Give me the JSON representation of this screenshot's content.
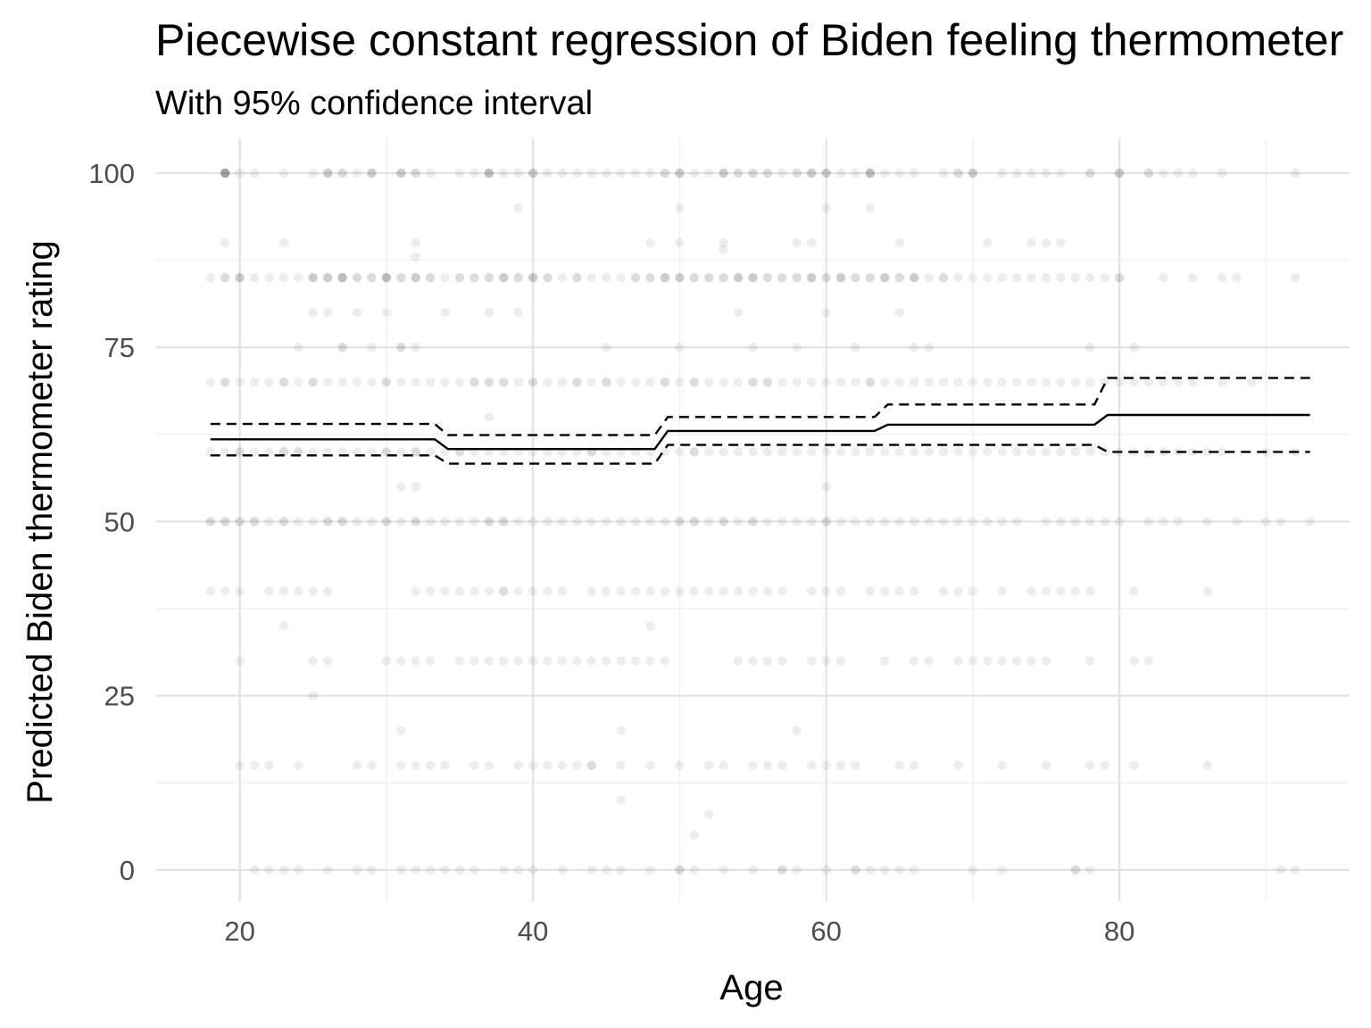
{
  "chart_data": {
    "type": "scatter",
    "title": "Piecewise constant regression of Biden feeling thermometer",
    "subtitle": "With 95% confidence interval",
    "xlabel": "Age",
    "ylabel": "Predicted Biden thermometer rating",
    "xlim": [
      14.3,
      95.7
    ],
    "ylim": [
      -4.5,
      105
    ],
    "x_ticks": [
      20,
      40,
      60,
      80
    ],
    "y_ticks": [
      0,
      25,
      50,
      75,
      100
    ],
    "x_tick_labels": [
      "20",
      "40",
      "60",
      "80"
    ],
    "y_tick_labels": [
      "0",
      "25",
      "50",
      "75",
      "100"
    ],
    "grid": true,
    "legend": "none",
    "colors": {
      "points": "#000000",
      "lines": "#000000",
      "grid_major": "#e3e3e3",
      "grid_minor": "#f0f0f0"
    },
    "point_alpha": 0.07,
    "scatter_points": [
      {
        "y": 100,
        "x": [
          19,
          19,
          19,
          19,
          19,
          19,
          20,
          21,
          23,
          25,
          26,
          26,
          26,
          27,
          27,
          28,
          29,
          29,
          29,
          31,
          31,
          31,
          32,
          32,
          33,
          35,
          36,
          37,
          37,
          37,
          37,
          38,
          39,
          40,
          40,
          40,
          41,
          42,
          43,
          44,
          45,
          46,
          47,
          48,
          49,
          49,
          50,
          50,
          50,
          51,
          52,
          53,
          53,
          53,
          54,
          54,
          55,
          55,
          56,
          56,
          57,
          58,
          58,
          59,
          59,
          59,
          60,
          60,
          60,
          61,
          62,
          63,
          63,
          63,
          63,
          64,
          65,
          66,
          68,
          69,
          69,
          70,
          70,
          70,
          72,
          73,
          74,
          75,
          76,
          78,
          78,
          80,
          80,
          80,
          82,
          82,
          83,
          84,
          85,
          87,
          92
        ]
      },
      {
        "y": 95,
        "x": [
          39,
          50,
          60,
          63
        ]
      },
      {
        "y": 90,
        "x": [
          19,
          23,
          32,
          48,
          50,
          53,
          58,
          59,
          65,
          71,
          74,
          75,
          76
        ]
      },
      {
        "y": 89,
        "x": [
          53
        ]
      },
      {
        "y": 88,
        "x": [
          32
        ]
      },
      {
        "y": 85,
        "x": [
          18,
          19,
          19,
          20,
          20,
          20,
          21,
          22,
          23,
          24,
          25,
          25,
          25,
          26,
          26,
          26,
          27,
          27,
          27,
          27,
          28,
          28,
          29,
          29,
          30,
          30,
          30,
          30,
          31,
          31,
          32,
          32,
          32,
          33,
          33,
          34,
          35,
          35,
          36,
          36,
          37,
          37,
          38,
          38,
          38,
          39,
          39,
          40,
          40,
          40,
          41,
          41,
          42,
          43,
          43,
          44,
          45,
          46,
          47,
          47,
          48,
          48,
          49,
          49,
          49,
          50,
          50,
          50,
          51,
          51,
          52,
          52,
          53,
          53,
          54,
          54,
          54,
          55,
          55,
          55,
          56,
          56,
          57,
          57,
          58,
          58,
          59,
          59,
          59,
          60,
          60,
          61,
          61,
          61,
          62,
          62,
          63,
          63,
          64,
          64,
          64,
          65,
          65,
          66,
          66,
          66,
          67,
          68,
          68,
          69,
          70,
          71,
          72,
          73,
          74,
          75,
          76,
          77,
          78,
          79,
          80,
          80,
          83,
          85,
          87,
          88,
          92
        ]
      },
      {
        "y": 80,
        "x": [
          25,
          26,
          28,
          30,
          34,
          37,
          39,
          54,
          60,
          65
        ]
      },
      {
        "y": 75,
        "x": [
          24,
          27,
          27,
          29,
          31,
          31,
          32,
          45,
          50,
          55,
          58,
          62,
          66,
          67,
          78,
          81
        ]
      },
      {
        "y": 70,
        "x": [
          18,
          19,
          19,
          20,
          21,
          22,
          23,
          23,
          24,
          25,
          25,
          26,
          27,
          28,
          29,
          30,
          30,
          31,
          32,
          33,
          34,
          35,
          36,
          36,
          37,
          37,
          38,
          38,
          39,
          40,
          40,
          41,
          42,
          43,
          43,
          44,
          45,
          45,
          46,
          47,
          48,
          49,
          49,
          50,
          51,
          51,
          52,
          53,
          54,
          55,
          55,
          56,
          56,
          57,
          58,
          59,
          60,
          61,
          62,
          63,
          63,
          64,
          65,
          66,
          67,
          68,
          69,
          70,
          71,
          72,
          73,
          74,
          75,
          76,
          77,
          78,
          79,
          80,
          81,
          82,
          83,
          84,
          85,
          87,
          89
        ]
      },
      {
        "y": 65,
        "x": [
          37
        ]
      },
      {
        "y": 60,
        "x": [
          18,
          19,
          20,
          20,
          21,
          22,
          23,
          23,
          24,
          24,
          25,
          26,
          27,
          28,
          29,
          30,
          30,
          31,
          32,
          32,
          33,
          34,
          35,
          35,
          36,
          37,
          38,
          39,
          40,
          41,
          42,
          43,
          44,
          44,
          45,
          46,
          47,
          48,
          49,
          50,
          51,
          51,
          52,
          53,
          54,
          55,
          56,
          57,
          58,
          59,
          60,
          61,
          62,
          63,
          64,
          65,
          66,
          67,
          68,
          69,
          70,
          71,
          72,
          73,
          74,
          75,
          76,
          77,
          78,
          79,
          80,
          81,
          82,
          83,
          84,
          85,
          86,
          87,
          90,
          92
        ]
      },
      {
        "y": 55,
        "x": [
          31,
          32,
          60
        ]
      },
      {
        "y": 50,
        "x": [
          18,
          18,
          19,
          19,
          20,
          20,
          21,
          21,
          22,
          23,
          23,
          24,
          25,
          26,
          26,
          27,
          27,
          28,
          29,
          30,
          30,
          31,
          32,
          32,
          33,
          34,
          35,
          36,
          37,
          37,
          38,
          38,
          39,
          40,
          41,
          42,
          43,
          44,
          45,
          46,
          47,
          48,
          49,
          50,
          50,
          51,
          51,
          52,
          53,
          53,
          54,
          55,
          55,
          56,
          57,
          58,
          59,
          60,
          60,
          61,
          62,
          63,
          64,
          65,
          66,
          67,
          68,
          69,
          70,
          71,
          72,
          73,
          75,
          76,
          77,
          78,
          79,
          80,
          82,
          83,
          84,
          86,
          88,
          90,
          91,
          93
        ]
      },
      {
        "y": 40,
        "x": [
          18,
          19,
          20,
          22,
          23,
          24,
          25,
          26,
          32,
          33,
          34,
          35,
          36,
          37,
          38,
          38,
          39,
          40,
          41,
          42,
          44,
          45,
          46,
          47,
          48,
          49,
          50,
          51,
          52,
          53,
          54,
          55,
          56,
          57,
          59,
          60,
          61,
          63,
          64,
          65,
          66,
          68,
          69,
          70,
          72,
          74,
          75,
          76,
          77,
          78,
          81,
          86
        ]
      },
      {
        "y": 35,
        "x": [
          23,
          48
        ]
      },
      {
        "y": 30,
        "x": [
          20,
          25,
          26,
          30,
          31,
          32,
          33,
          35,
          36,
          37,
          38,
          39,
          40,
          41,
          42,
          43,
          44,
          45,
          46,
          47,
          48,
          49,
          54,
          55,
          56,
          57,
          59,
          60,
          61,
          64,
          66,
          67,
          69,
          70,
          71,
          72,
          73,
          74,
          75,
          78,
          81,
          82
        ]
      },
      {
        "y": 25,
        "x": [
          25
        ]
      },
      {
        "y": 20,
        "x": [
          31,
          46,
          58
        ]
      },
      {
        "y": 15,
        "x": [
          20,
          21,
          22,
          24,
          28,
          29,
          31,
          32,
          33,
          34,
          36,
          37,
          39,
          40,
          41,
          42,
          43,
          44,
          44,
          46,
          48,
          50,
          52,
          53,
          55,
          56,
          57,
          59,
          60,
          61,
          62,
          65,
          66,
          69,
          72,
          75,
          78,
          79,
          81,
          86
        ]
      },
      {
        "y": 10,
        "x": [
          46
        ]
      },
      {
        "y": 8,
        "x": [
          52
        ]
      },
      {
        "y": 5,
        "x": [
          51
        ]
      },
      {
        "y": 0,
        "x": [
          21,
          22,
          23,
          24,
          26,
          28,
          29,
          31,
          32,
          33,
          34,
          35,
          36,
          38,
          39,
          40,
          42,
          44,
          45,
          46,
          48,
          50,
          50,
          51,
          53,
          55,
          57,
          57,
          58,
          60,
          62,
          62,
          63,
          64,
          65,
          66,
          70,
          72,
          77,
          77,
          78,
          91,
          92
        ]
      }
    ],
    "series": [
      {
        "x": [
          18,
          33.3,
          34.2,
          48.3,
          49.2,
          63.3,
          64.2,
          78.3,
          79.2,
          93
        ],
        "y": [
          61.8,
          61.8,
          60.4,
          60.4,
          63.0,
          63.0,
          63.9,
          63.9,
          65.3,
          65.3
        ]
      },
      {
        "x": [
          18,
          33.3,
          34.2,
          48.3,
          49.2,
          63.3,
          64.2,
          78.3,
          79.2,
          93
        ],
        "y": [
          64.0,
          64.0,
          62.4,
          62.4,
          65.0,
          65.0,
          66.8,
          66.8,
          70.6,
          70.6
        ]
      },
      {
        "x": [
          18,
          33.3,
          34.2,
          48.3,
          49.2,
          63.3,
          64.2,
          78.3,
          79.2,
          93
        ],
        "y": [
          59.5,
          59.5,
          58.3,
          58.3,
          61.0,
          61.0,
          61.0,
          61.0,
          60.0,
          60.0
        ]
      }
    ]
  }
}
